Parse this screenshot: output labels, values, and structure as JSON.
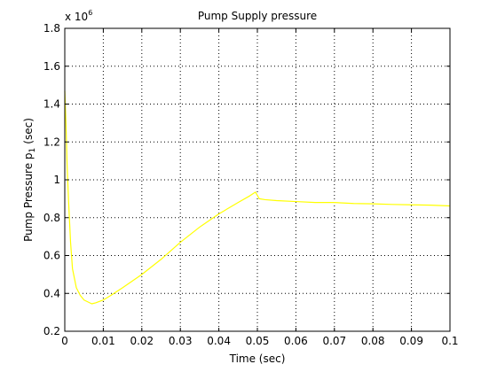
{
  "chart_data": {
    "type": "line",
    "title": "Pump Supply pressure",
    "xlabel": "Time (sec)",
    "ylabel_main": "Pump Pressure p",
    "ylabel_sub": "1",
    "ylabel_unit": "(sec)",
    "y_multiplier_base": "x 10",
    "y_multiplier_exp": "6",
    "xlim": [
      0,
      0.1
    ],
    "ylim": [
      0.2,
      1.8
    ],
    "xticks": [
      0,
      0.01,
      0.02,
      0.03,
      0.04,
      0.05,
      0.06,
      0.07,
      0.08,
      0.09,
      0.1
    ],
    "xtick_labels": [
      "0",
      "0.01",
      "0.02",
      "0.03",
      "0.04",
      "0.05",
      "0.06",
      "0.07",
      "0.08",
      "0.09",
      "0.1"
    ],
    "yticks": [
      0.2,
      0.4,
      0.6,
      0.8,
      1.0,
      1.2,
      1.4,
      1.6,
      1.8
    ],
    "ytick_labels": [
      "0.2",
      "0.4",
      "0.6",
      "0.8",
      "1",
      "1.2",
      "1.4",
      "1.6",
      "1.8"
    ],
    "grid": true,
    "grid_style": "dotted",
    "series": [
      {
        "color": "#ffff00",
        "x": [
          0,
          0.0003,
          0.0006,
          0.001,
          0.0015,
          0.002,
          0.003,
          0.004,
          0.005,
          0.006,
          0.007,
          0.008,
          0.01,
          0.012,
          0.015,
          0.02,
          0.025,
          0.03,
          0.035,
          0.04,
          0.045,
          0.048,
          0.0495,
          0.0505,
          0.052,
          0.055,
          0.06,
          0.065,
          0.07,
          0.075,
          0.08,
          0.085,
          0.09,
          0.095,
          0.1
        ],
        "y": [
          1.47,
          1.3,
          1.08,
          0.88,
          0.67,
          0.53,
          0.43,
          0.39,
          0.365,
          0.355,
          0.345,
          0.35,
          0.365,
          0.39,
          0.43,
          0.5,
          0.58,
          0.67,
          0.75,
          0.82,
          0.88,
          0.915,
          0.935,
          0.9,
          0.895,
          0.89,
          0.885,
          0.88,
          0.88,
          0.875,
          0.873,
          0.87,
          0.868,
          0.866,
          0.862
        ]
      }
    ]
  }
}
